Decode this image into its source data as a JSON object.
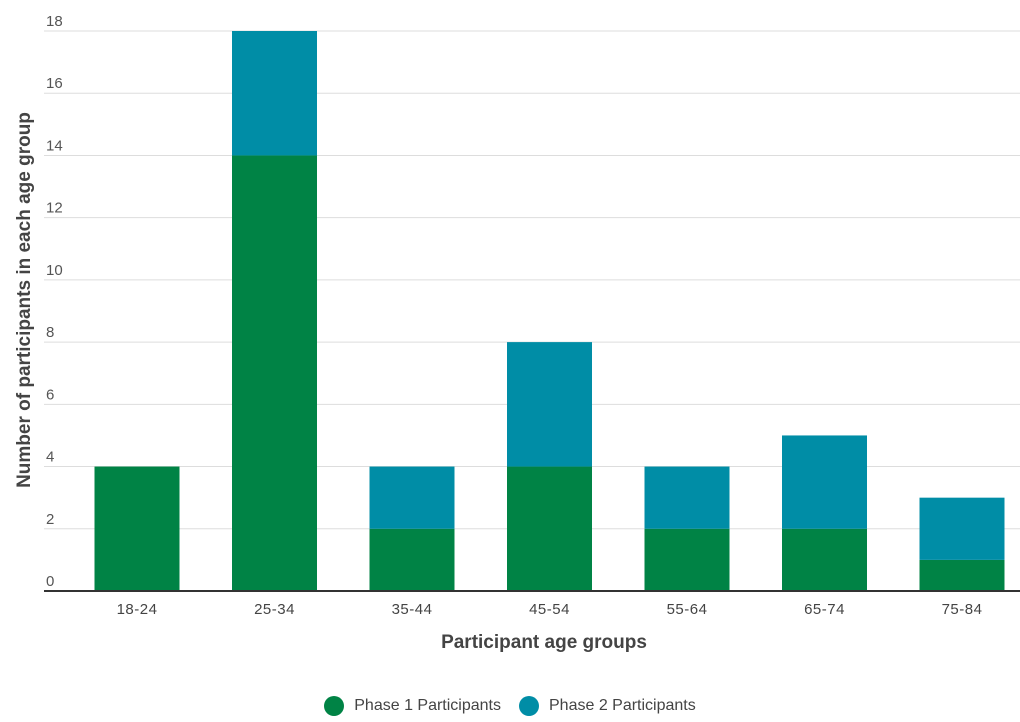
{
  "chart_data": {
    "type": "bar",
    "stacked": true,
    "categories": [
      "18-24",
      "25-34",
      "35-44",
      "45-54",
      "55-64",
      "65-74",
      "75-84"
    ],
    "series": [
      {
        "name": "Phase 1 Participants",
        "color": "#008345",
        "values": [
          4,
          14,
          2,
          4,
          2,
          2,
          1
        ]
      },
      {
        "name": "Phase 2 Participants",
        "color": "#008da6",
        "values": [
          0,
          4,
          2,
          4,
          2,
          3,
          2
        ]
      }
    ],
    "xlabel": "Participant age groups",
    "ylabel": "Number of participants in each age group",
    "ylim": [
      0,
      18
    ],
    "yticks": [
      "0",
      "2",
      "4",
      "6",
      "8",
      "10",
      "12",
      "14",
      "16",
      "18"
    ],
    "grid": true,
    "legend_position": "bottom"
  }
}
